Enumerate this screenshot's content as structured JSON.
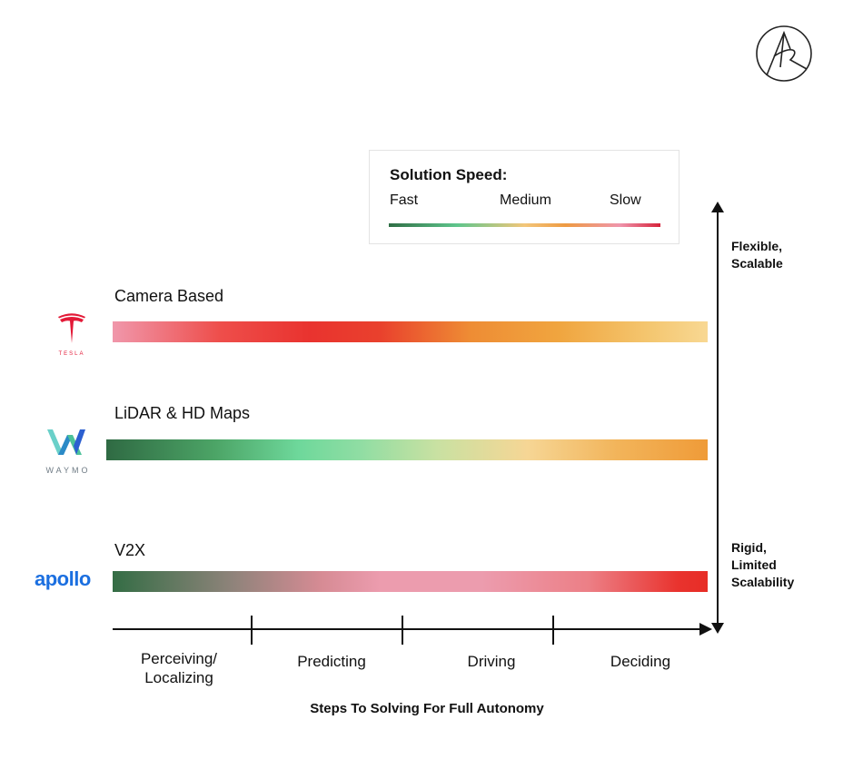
{
  "legend": {
    "title": "Solution Speed:",
    "fast": "Fast",
    "medium": "Medium",
    "slow": "Slow",
    "gradient_colors": [
      "#2f6e45",
      "#5ec58c",
      "#f3c67a",
      "#ee9a42",
      "#ef95ac",
      "#d6223a"
    ]
  },
  "approaches": [
    {
      "label": "Camera Based",
      "company": "TESLA",
      "logo": "tesla-logo"
    },
    {
      "label": "LiDAR & HD Maps",
      "company": "WAYMO",
      "logo": "waymo-logo"
    },
    {
      "label": "V2X",
      "company": "apollo",
      "logo": "apollo-logo"
    }
  ],
  "vertical_axis": {
    "top_label": [
      "Flexible,",
      "Scalable"
    ],
    "bottom_label": [
      "Rigid,",
      "Limited",
      "Scalability"
    ]
  },
  "horizontal_axis": {
    "steps": [
      {
        "line1": "Perceiving/",
        "line2": "Localizing"
      },
      {
        "line1": "Predicting",
        "line2": ""
      },
      {
        "line1": "Driving",
        "line2": ""
      },
      {
        "line1": "Deciding",
        "line2": ""
      }
    ],
    "title": "Steps To Solving For Full Autonomy"
  },
  "icons": {
    "brand": "ark-invest-logo",
    "axis_arrow": "arrow-icon"
  }
}
